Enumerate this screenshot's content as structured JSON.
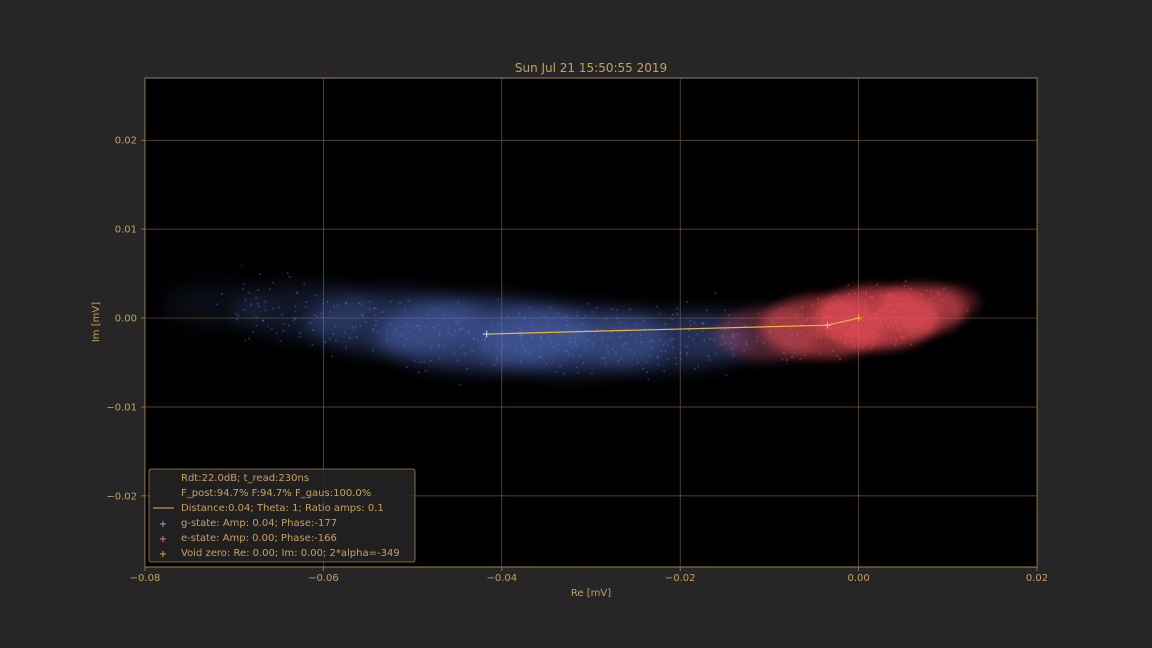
{
  "chart_data": {
    "type": "scatter",
    "title": "Sun Jul 21 15:50:55 2019",
    "xlabel": "Re [mV]",
    "ylabel": "Im [mV]",
    "xlim": [
      -0.08,
      0.02
    ],
    "ylim": [
      -0.028,
      0.027
    ],
    "xticks": [
      -0.08,
      -0.06,
      -0.04,
      -0.02,
      0.0,
      0.02
    ],
    "xtick_labels": [
      "−0.08",
      "−0.06",
      "−0.04",
      "−0.02",
      "0.00",
      "0.02"
    ],
    "yticks": [
      -0.02,
      -0.01,
      0.0,
      0.01,
      0.02
    ],
    "ytick_labels": [
      "−0.02",
      "−0.01",
      "0.00",
      "0.01",
      "0.02"
    ],
    "grid": true,
    "legend_position": "bottom-left",
    "colors": {
      "background": "#262626",
      "plot_background": "#000000",
      "text": "#c8a060",
      "grid": "#6e5a36",
      "g_state": "#5a78d2",
      "e_state": "#eb505a",
      "line": "#f0b43c"
    },
    "series": [
      {
        "name": "g-state",
        "kind": "cloud",
        "center": [
          -0.042,
          -0.0018
        ],
        "color": "#5a78d2",
        "marker": [
          -0.0417,
          -0.0018
        ]
      },
      {
        "name": "e-state",
        "kind": "cloud",
        "center": [
          0.0005,
          0.0
        ],
        "color": "#eb505a",
        "marker": [
          -0.0035,
          -0.0008
        ]
      },
      {
        "name": "Void zero",
        "kind": "line",
        "color": "#f0b43c",
        "points": [
          [
            -0.0417,
            -0.0018
          ],
          [
            -0.0035,
            -0.0008
          ],
          [
            0.0,
            0.0
          ]
        ]
      }
    ],
    "legend": {
      "header_lines": [
        "Rdt:22.0dB; t_read:230ns",
        "F_post:94.7% F:94.7% F_gaus:100.0%"
      ],
      "entries": [
        {
          "symbol": "line",
          "color": "#f0b43c",
          "label": "Distance:0.04; Theta: 1; Ratio amps:  0.1"
        },
        {
          "symbol": "+",
          "color": "#9fb0ee",
          "label": "g-state: Amp: 0.04; Phase:-177"
        },
        {
          "symbol": "+",
          "color": "#f08a90",
          "label": "e-state: Amp: 0.00; Phase:-166"
        },
        {
          "symbol": "+",
          "color": "#f0b43c",
          "label": "Void zero: Re: 0.00; Im: 0.00; 2*alpha=-349"
        }
      ]
    }
  }
}
